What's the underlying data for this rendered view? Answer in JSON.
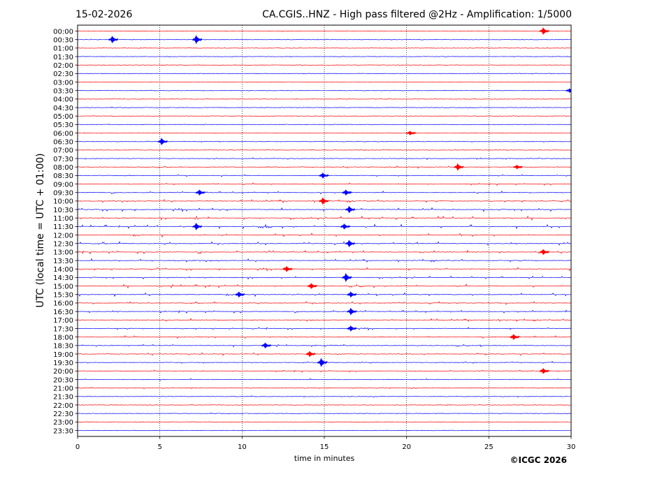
{
  "date": "15-02-2026",
  "header_title": "CA.CGIS..HNZ - High pass filtered @2Hz - Amplification: 1/5000",
  "copyright": "©ICGC 2026",
  "chart_data": {
    "type": "line",
    "title": "CA.CGIS..HNZ - High pass filtered @2Hz - Amplification: 1/5000",
    "xlabel": "time in minutes",
    "ylabel": "UTC (local time = UTC + 01:00)",
    "xlim": [
      0,
      30
    ],
    "xticks": [
      "0",
      "5",
      "10",
      "15",
      "20",
      "25",
      "30"
    ],
    "vertical_grid_at_minutes": [
      5,
      10,
      15,
      20,
      25
    ],
    "grid_style": "dotted",
    "trace_colors": [
      "#ff0000",
      "#0000ff"
    ],
    "rows": [
      "00:00",
      "00:30",
      "01:00",
      "01:30",
      "02:00",
      "02:30",
      "03:00",
      "03:30",
      "04:00",
      "04:30",
      "05:00",
      "05:30",
      "06:00",
      "06:30",
      "07:00",
      "07:30",
      "08:00",
      "08:30",
      "09:00",
      "09:30",
      "10:00",
      "10:30",
      "11:00",
      "11:30",
      "12:00",
      "12:30",
      "13:00",
      "13:30",
      "14:00",
      "14:30",
      "15:00",
      "15:30",
      "16:00",
      "16:30",
      "17:00",
      "17:30",
      "18:00",
      "18:30",
      "19:00",
      "19:30",
      "20:00",
      "20:30",
      "21:00",
      "21:30",
      "22:00",
      "22:30",
      "23:00",
      "23:30"
    ],
    "noise_level": [
      0.8,
      0.9,
      0.7,
      0.6,
      0.7,
      0.8,
      0.7,
      0.7,
      0.8,
      1.0,
      1.0,
      1.0,
      1.2,
      1.1,
      0.9,
      1.4,
      1.8,
      1.9,
      2.0,
      2.4,
      2.8,
      3.2,
      3.2,
      3.2,
      3.0,
      3.2,
      3.0,
      2.8,
      2.8,
      2.6,
      2.8,
      2.8,
      2.6,
      2.6,
      2.5,
      2.3,
      2.2,
      2.0,
      2.2,
      2.0,
      1.8,
      1.6,
      1.4,
      1.2,
      1.1,
      1.0,
      0.6,
      0.6
    ],
    "events": [
      {
        "row": "00:00",
        "minute": 28.3,
        "amp": 5
      },
      {
        "row": "00:30",
        "minute": 2.1,
        "amp": 5
      },
      {
        "row": "00:30",
        "minute": 7.2,
        "amp": 6
      },
      {
        "row": "03:30",
        "minute": 29.9,
        "amp": 3
      },
      {
        "row": "06:00",
        "minute": 20.2,
        "amp": 3
      },
      {
        "row": "06:30",
        "minute": 5.1,
        "amp": 5
      },
      {
        "row": "08:00",
        "minute": 23.1,
        "amp": 5
      },
      {
        "row": "08:00",
        "minute": 26.7,
        "amp": 3
      },
      {
        "row": "08:30",
        "minute": 14.9,
        "amp": 4
      },
      {
        "row": "09:30",
        "minute": 7.4,
        "amp": 4
      },
      {
        "row": "09:30",
        "minute": 16.3,
        "amp": 4
      },
      {
        "row": "10:00",
        "minute": 14.9,
        "amp": 5
      },
      {
        "row": "10:30",
        "minute": 16.5,
        "amp": 5
      },
      {
        "row": "11:30",
        "minute": 7.2,
        "amp": 5
      },
      {
        "row": "11:30",
        "minute": 16.2,
        "amp": 4
      },
      {
        "row": "12:30",
        "minute": 16.5,
        "amp": 5
      },
      {
        "row": "13:00",
        "minute": 28.3,
        "amp": 4
      },
      {
        "row": "14:00",
        "minute": 12.7,
        "amp": 4
      },
      {
        "row": "14:30",
        "minute": 16.3,
        "amp": 6
      },
      {
        "row": "15:00",
        "minute": 14.2,
        "amp": 4
      },
      {
        "row": "15:30",
        "minute": 9.8,
        "amp": 4
      },
      {
        "row": "15:30",
        "minute": 16.6,
        "amp": 4
      },
      {
        "row": "16:30",
        "minute": 16.6,
        "amp": 5
      },
      {
        "row": "17:30",
        "minute": 16.6,
        "amp": 4
      },
      {
        "row": "18:00",
        "minute": 26.5,
        "amp": 4
      },
      {
        "row": "18:30",
        "minute": 11.4,
        "amp": 4
      },
      {
        "row": "19:00",
        "minute": 14.1,
        "amp": 4
      },
      {
        "row": "19:30",
        "minute": 14.8,
        "amp": 6
      },
      {
        "row": "20:00",
        "minute": 28.3,
        "amp": 4
      }
    ]
  }
}
